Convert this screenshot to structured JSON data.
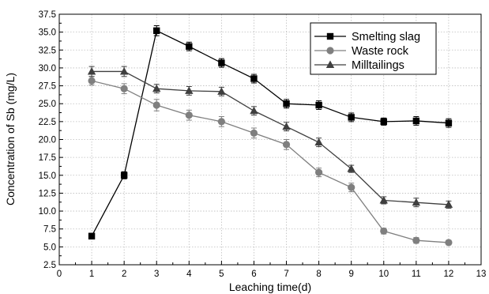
{
  "chart_data": {
    "type": "line",
    "xlabel": "Leaching time(d)",
    "ylabel": "Concentration of Sb (mg/L)",
    "xlim": [
      0,
      13
    ],
    "ylim": [
      2.5,
      37.5
    ],
    "x_ticks": [
      "0",
      "1",
      "2",
      "3",
      "4",
      "5",
      "6",
      "7",
      "8",
      "9",
      "10",
      "11",
      "12",
      "13"
    ],
    "y_ticks": [
      "2.5",
      "5.0",
      "7.5",
      "10.0",
      "12.5",
      "15.0",
      "17.5",
      "20.0",
      "22.5",
      "25.0",
      "27.5",
      "30.0",
      "32.5",
      "35.0",
      "37.5"
    ],
    "grid": true,
    "legend_position": "top-right",
    "x": [
      1,
      2,
      3,
      4,
      5,
      6,
      7,
      8,
      9,
      10,
      11,
      12
    ],
    "series": [
      {
        "name": "Smelting slag",
        "marker": "square",
        "color": "#000000",
        "values": [
          6.5,
          15.0,
          35.2,
          33.0,
          30.7,
          28.5,
          25.0,
          24.8,
          23.1,
          22.5,
          22.6,
          22.3
        ],
        "errors": [
          0.4,
          0.5,
          0.7,
          0.6,
          0.6,
          0.6,
          0.6,
          0.6,
          0.6,
          0.5,
          0.6,
          0.6
        ]
      },
      {
        "name": "Waste rock",
        "marker": "circle",
        "color": "#7f7f7f",
        "values": [
          28.2,
          27.1,
          24.8,
          23.4,
          22.5,
          20.9,
          19.3,
          15.4,
          13.3,
          7.2,
          5.9,
          5.6
        ],
        "errors": [
          0.6,
          0.7,
          0.8,
          0.7,
          0.7,
          0.7,
          0.7,
          0.6,
          0.6,
          0.4,
          0.4,
          0.3
        ]
      },
      {
        "name": "Milltailings",
        "marker": "triangle",
        "color": "#3f3f3f",
        "values": [
          29.5,
          29.5,
          27.1,
          26.8,
          26.7,
          24.0,
          21.8,
          19.6,
          15.9,
          11.5,
          11.2,
          10.9
        ],
        "errors": [
          0.7,
          0.7,
          0.6,
          0.6,
          0.6,
          0.6,
          0.6,
          0.6,
          0.5,
          0.5,
          0.6,
          0.5
        ]
      }
    ]
  }
}
